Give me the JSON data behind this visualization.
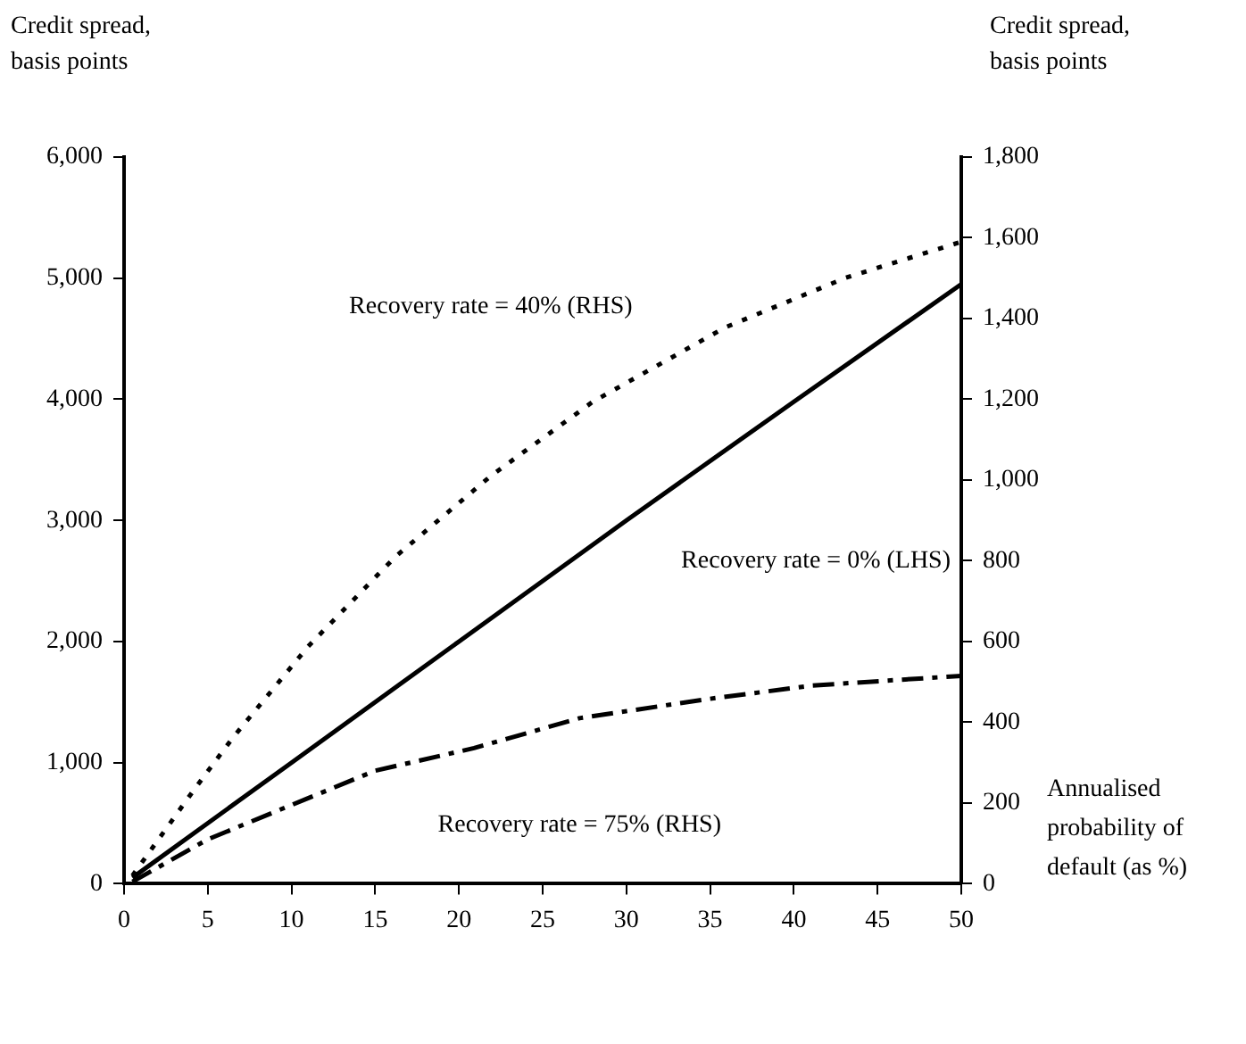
{
  "chart_data": {
    "type": "line",
    "ylabel": "Credit spread, basis points",
    "y2label": "Credit spread, basis points",
    "xlabel": "Annualised probability of default (as %)",
    "xlim": [
      0,
      50
    ],
    "xticks": [
      0,
      5,
      10,
      15,
      20,
      25,
      30,
      35,
      40,
      45,
      50
    ],
    "ylim": [
      0,
      6000
    ],
    "yticks": [
      0,
      {
        "value": 1000,
        "label": "1,000"
      },
      {
        "value": 2000,
        "label": "2,000"
      },
      {
        "value": 3000,
        "label": "3,000"
      },
      {
        "value": 4000,
        "label": "4,000"
      },
      {
        "value": 5000,
        "label": "5,000"
      },
      {
        "value": 6000,
        "label": "6,000"
      }
    ],
    "y2lim": [
      0,
      1800
    ],
    "y2ticks": [
      0,
      200,
      400,
      600,
      800,
      {
        "value": 1000,
        "label": "1,000"
      },
      {
        "value": 1200,
        "label": "1,200"
      },
      {
        "value": 1400,
        "label": "1,400"
      },
      {
        "value": 1600,
        "label": "1,600"
      },
      {
        "value": 1800,
        "label": "1,800"
      }
    ],
    "grid": false,
    "legend": false,
    "marker": "none",
    "series": [
      {
        "name": "Recovery rate = 40% (RHS)",
        "color": "#000000",
        "axis": "y2",
        "line_style": "dotted",
        "x": [
          0.5,
          4.2,
          6.5,
          11,
          16.2,
          21.9,
          28,
          35.9,
          43.1,
          50
        ],
        "values": [
          20,
          234,
          362,
          588,
          810,
          1010,
          1194,
          1378,
          1501,
          1590
        ]
      },
      {
        "name": "Recovery rate = 0% (LHS)",
        "color": "#000000",
        "axis": "y",
        "line_style": "solid",
        "x": [
          0.5,
          10,
          20,
          30,
          40,
          50
        ],
        "values": [
          50,
          1000,
          2000,
          3000,
          3980,
          4950
        ]
      },
      {
        "name": "Recovery rate = 75% (RHS)",
        "color": "#000000",
        "axis": "y2",
        "line_style": "dashed",
        "x": [
          0.5,
          5,
          9.7,
          15,
          20.9,
          27.2,
          34.6,
          41.1,
          50
        ],
        "values": [
          5,
          110,
          190,
          280,
          336,
          410,
          456,
          491,
          515
        ]
      }
    ]
  }
}
